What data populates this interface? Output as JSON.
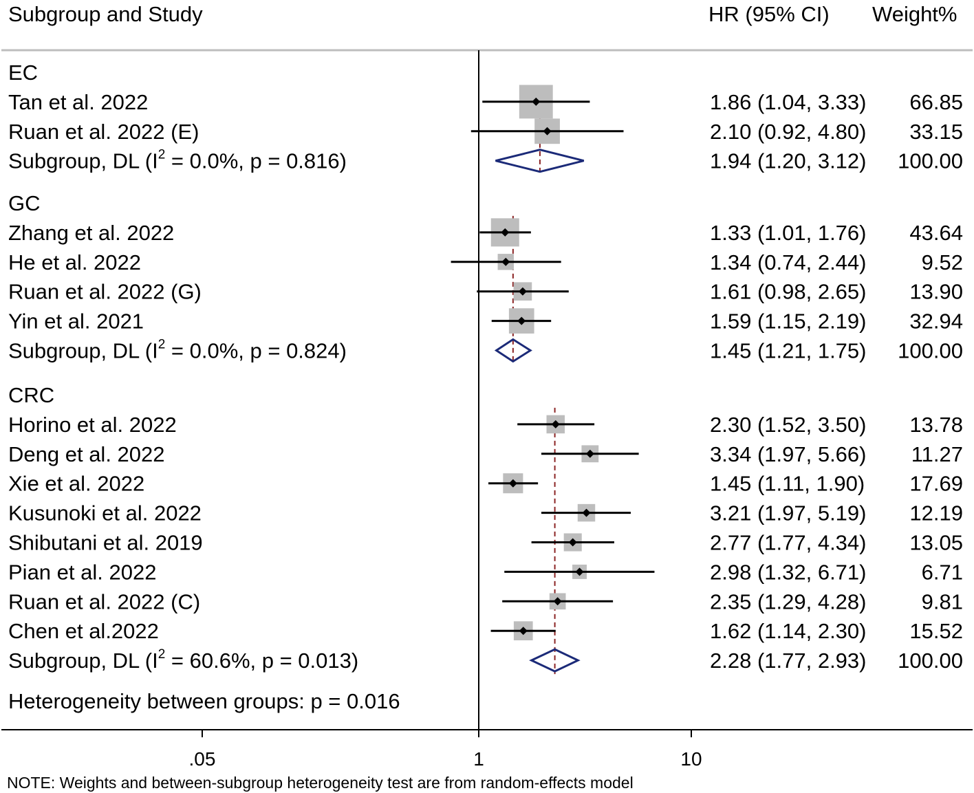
{
  "header": {
    "study_col": "Subgroup and Study",
    "hr_col": "HR (95% CI)",
    "weight_col": "Weight",
    "weight_unit": "%"
  },
  "note": "NOTE: Weights and between-subgroup heterogeneity test are from random-effects model",
  "heterogeneity_between": "Heterogeneity between groups: p = 0.016",
  "colors": {
    "box": "#bdbdbd",
    "diamond": "#1b2a78",
    "dashed": "#8b2323",
    "axis": "#000000",
    "rule": "#bdbdbd"
  },
  "chart_data": {
    "type": "forest",
    "xscale": "log",
    "null_value": 1,
    "x_ticks": [
      {
        "value": 0.05,
        "label": ".05"
      },
      {
        "value": 1,
        "label": "1"
      },
      {
        "value": 10,
        "label": "10"
      }
    ],
    "groups": [
      {
        "name": "EC",
        "studies": [
          {
            "name": "Tan et al. 2022",
            "hr": 1.86,
            "lo": 1.04,
            "hi": 3.33,
            "ci_text": "1.86 (1.04, 3.33)",
            "weight": "66.85"
          },
          {
            "name": "Ruan et al. 2022 (E)",
            "hr": 2.1,
            "lo": 0.92,
            "hi": 4.8,
            "ci_text": "2.10 (0.92, 4.80)",
            "weight": "33.15"
          }
        ],
        "subgroup": {
          "pre": "Subgroup, DL (I",
          "sup": "2",
          "post": " = 0.0%, p = 0.816)",
          "hr": 1.94,
          "lo": 1.2,
          "hi": 3.12,
          "ci_text": "1.94 (1.20, 3.12)",
          "weight": "100.00"
        }
      },
      {
        "name": "GC",
        "studies": [
          {
            "name": "Zhang et al. 2022",
            "hr": 1.33,
            "lo": 1.01,
            "hi": 1.76,
            "ci_text": "1.33 (1.01, 1.76)",
            "weight": "43.64"
          },
          {
            "name": "He et al. 2022",
            "hr": 1.34,
            "lo": 0.74,
            "hi": 2.44,
            "ci_text": "1.34 (0.74, 2.44)",
            "weight": "9.52"
          },
          {
            "name": "Ruan et al. 2022 (G)",
            "hr": 1.61,
            "lo": 0.98,
            "hi": 2.65,
            "ci_text": "1.61 (0.98, 2.65)",
            "weight": "13.90"
          },
          {
            "name": "Yin et al. 2021",
            "hr": 1.59,
            "lo": 1.15,
            "hi": 2.19,
            "ci_text": "1.59 (1.15, 2.19)",
            "weight": "32.94"
          }
        ],
        "subgroup": {
          "pre": "Subgroup, DL (I",
          "sup": "2",
          "post": " = 0.0%, p = 0.824)",
          "hr": 1.45,
          "lo": 1.21,
          "hi": 1.75,
          "ci_text": "1.45 (1.21, 1.75)",
          "weight": "100.00"
        }
      },
      {
        "name": "CRC",
        "studies": [
          {
            "name": "Horino et al. 2022",
            "hr": 2.3,
            "lo": 1.52,
            "hi": 3.5,
            "ci_text": "2.30 (1.52, 3.50)",
            "weight": "13.78"
          },
          {
            "name": "Deng et al. 2022",
            "hr": 3.34,
            "lo": 1.97,
            "hi": 5.66,
            "ci_text": "3.34 (1.97, 5.66)",
            "weight": "11.27"
          },
          {
            "name": "Xie et al. 2022",
            "hr": 1.45,
            "lo": 1.11,
            "hi": 1.9,
            "ci_text": "1.45 (1.11, 1.90)",
            "weight": "17.69"
          },
          {
            "name": "Kusunoki et al. 2022",
            "hr": 3.21,
            "lo": 1.97,
            "hi": 5.19,
            "ci_text": "3.21 (1.97, 5.19)",
            "weight": "12.19"
          },
          {
            "name": "Shibutani et al. 2019",
            "hr": 2.77,
            "lo": 1.77,
            "hi": 4.34,
            "ci_text": "2.77 (1.77, 4.34)",
            "weight": "13.05"
          },
          {
            "name": "Pian et al. 2022",
            "hr": 2.98,
            "lo": 1.32,
            "hi": 6.71,
            "ci_text": "2.98 (1.32, 6.71)",
            "weight": "6.71"
          },
          {
            "name": "Ruan et al. 2022 (C)",
            "hr": 2.35,
            "lo": 1.29,
            "hi": 4.28,
            "ci_text": "2.35 (1.29, 4.28)",
            "weight": "9.81"
          },
          {
            "name": "Chen et al.2022",
            "hr": 1.62,
            "lo": 1.14,
            "hi": 2.3,
            "ci_text": "1.62 (1.14, 2.30)",
            "weight": "15.52"
          }
        ],
        "subgroup": {
          "pre": "Subgroup, DL (I",
          "sup": "2",
          "post": " = 60.6%, p = 0.013)",
          "hr": 2.28,
          "lo": 1.77,
          "hi": 2.93,
          "ci_text": "2.28 (1.77, 2.93)",
          "weight": "100.00"
        }
      }
    ]
  }
}
